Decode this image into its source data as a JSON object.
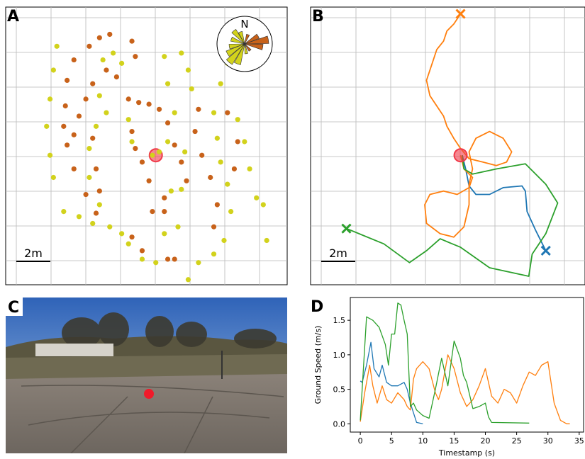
{
  "chart_data": [
    {
      "type": "scatter",
      "panel_label": "A",
      "compass_label": "N",
      "scale_label": "2m",
      "xlim": [
        0,
        16.5
      ],
      "ylim": [
        0,
        16.3
      ],
      "origin": {
        "x": 8.8,
        "y": 7.6
      },
      "series": [
        {
          "color": "#c8621a",
          "x": [
            4.9,
            5.5,
            6.1,
            4.0,
            3.6,
            3.5,
            3.4,
            3.6,
            4.0,
            4.7,
            5.3,
            5.9,
            5.1,
            4.7,
            4.3,
            4.0,
            5.1,
            5.3,
            5.5,
            7.2,
            7.8,
            8.4,
            7.4,
            7.6,
            8.0,
            9.0,
            9.5,
            9.9,
            10.3,
            10.6,
            9.3,
            9.3,
            11.1,
            11.5,
            12.0,
            12.4,
            12.2,
            9.9,
            9.5,
            7.4,
            8.0,
            13.4,
            13.6,
            13.0,
            11.3,
            7.6,
            7.4,
            6.5,
            8.4,
            8.6
          ],
          "values": [
            14.0,
            14.5,
            14.7,
            13.2,
            12.0,
            10.5,
            9.3,
            8.2,
            6.8,
            5.3,
            4.2,
            12.6,
            11.8,
            10.9,
            9.9,
            8.8,
            8.6,
            6.8,
            5.5,
            10.9,
            10.7,
            10.6,
            9.0,
            8.0,
            7.2,
            10.3,
            9.5,
            8.2,
            7.2,
            6.1,
            5.1,
            4.3,
            9.0,
            7.6,
            6.3,
            4.7,
            3.4,
            1.5,
            1.5,
            2.8,
            2.0,
            6.8,
            8.4,
            10.1,
            10.3,
            13.4,
            14.3,
            12.2,
            6.1,
            4.3
          ]
        },
        {
          "color": "#d2d21c",
          "x": [
            3.0,
            2.8,
            2.6,
            2.4,
            2.6,
            2.8,
            3.4,
            4.3,
            5.1,
            6.1,
            6.8,
            7.2,
            8.0,
            8.8,
            9.3,
            10.1,
            10.7,
            11.3,
            12.2,
            12.8,
            13.2,
            13.0,
            12.6,
            12.4,
            12.2,
            13.6,
            14.0,
            14.3,
            15.1,
            15.3,
            14.7,
            9.7,
            10.3,
            9.5,
            8.6,
            7.4,
            7.2,
            5.7,
            6.3,
            6.8,
            9.3,
            10.3,
            10.7,
            10.9,
            9.9,
            9.5,
            12.6,
            13.0,
            5.5,
            5.9,
            5.3,
            4.9,
            4.9,
            5.5,
            9.0,
            10.5
          ],
          "values": [
            14.0,
            12.6,
            10.9,
            9.3,
            7.6,
            6.3,
            4.3,
            4.0,
            3.6,
            3.4,
            3.0,
            2.4,
            1.5,
            1.3,
            3.0,
            3.4,
            0.3,
            1.3,
            1.8,
            2.6,
            4.3,
            5.9,
            7.2,
            8.6,
            10.1,
            9.7,
            8.4,
            6.8,
            4.7,
            2.6,
            5.1,
            5.5,
            5.6,
            8.4,
            7.6,
            8.4,
            9.7,
            13.2,
            13.6,
            13.0,
            13.4,
            13.6,
            12.6,
            11.5,
            10.1,
            11.8,
            11.8,
            13.0,
            11.1,
            10.1,
            9.3,
            8.0,
            6.3,
            4.7,
            7.8,
            7.8
          ]
        }
      ]
    },
    {
      "type": "trajectory",
      "panel_label": "B",
      "scale_label": "2m",
      "xlim": [
        0,
        16.1
      ],
      "ylim": [
        0,
        16.3
      ],
      "origin": {
        "x": 8.8,
        "y": 7.6
      },
      "series": [
        {
          "color": "#1f77b4",
          "x": [
            13.8,
            13.2,
            12.7,
            12.6,
            12.4,
            11.3,
            10.5,
            9.7,
            9.3,
            9.1,
            8.9
          ],
          "values": [
            2.0,
            3.2,
            4.3,
            5.5,
            5.8,
            5.7,
            5.3,
            5.3,
            5.8,
            6.8,
            7.6
          ]
        },
        {
          "color": "#ff7f0e",
          "x": [
            8.8,
            8.4,
            8.0,
            7.8,
            7.4,
            7.2,
            7.0,
            6.8,
            7.0,
            7.4,
            7.8,
            8.0,
            8.4,
            8.8,
            9.3,
            10.1,
            10.9,
            11.5,
            11.8,
            11.3,
            10.5,
            9.7,
            9.3,
            9.5,
            9.3,
            9.3,
            9.0,
            8.4,
            7.6,
            6.8,
            6.7,
            7.0,
            7.8,
            8.6,
            9.3,
            9.5,
            9.0,
            8.8
          ],
          "values": [
            15.9,
            15.3,
            14.9,
            14.3,
            13.8,
            13.2,
            12.6,
            12.0,
            11.1,
            10.5,
            9.9,
            9.3,
            8.6,
            8.0,
            7.4,
            7.2,
            7.0,
            7.2,
            7.8,
            8.6,
            9.0,
            8.6,
            7.8,
            6.8,
            5.9,
            4.7,
            3.4,
            2.8,
            3.0,
            3.6,
            4.7,
            5.3,
            5.5,
            5.3,
            5.7,
            6.3,
            6.8,
            7.6
          ]
        },
        {
          "color": "#2ca02c",
          "x": [
            2.1,
            4.3,
            5.8,
            6.8,
            7.6,
            8.8,
            10.5,
            12.8,
            13.0,
            13.8,
            14.5,
            13.8,
            12.6,
            10.9,
            9.5,
            9.0,
            8.9
          ],
          "values": [
            3.3,
            2.4,
            1.3,
            2.0,
            2.7,
            2.2,
            1.0,
            0.5,
            1.8,
            3.0,
            4.8,
            5.9,
            7.1,
            6.8,
            6.5,
            6.8,
            7.6
          ]
        }
      ]
    },
    {
      "type": "line",
      "panel_label": "D",
      "x_label": "Timestamp (s)",
      "y_label": "Ground Speed (m/s)",
      "xlim": [
        -1.6,
        35.7
      ],
      "ylim": [
        -0.12,
        1.83
      ],
      "xticks": [
        0,
        5,
        10,
        15,
        20,
        25,
        30,
        35
      ],
      "yticks": [
        {
          "value": 0,
          "label": "0.0"
        },
        {
          "value": 0.5,
          "label": "0.5"
        },
        {
          "value": 1,
          "label": "1.0"
        },
        {
          "value": 1.5,
          "label": "1.5"
        }
      ],
      "series": [
        {
          "color": "#1f77b4",
          "x": [
            0,
            0.3,
            1,
            1.7,
            2.2,
            3,
            3.5,
            4.2,
            5,
            6,
            7,
            7.5,
            8,
            9,
            10
          ],
          "values": [
            0.62,
            0.6,
            0.85,
            1.18,
            0.8,
            0.68,
            0.85,
            0.6,
            0.55,
            0.55,
            0.6,
            0.5,
            0.3,
            0.02,
            0
          ]
        },
        {
          "color": "#ff7f0e",
          "x": [
            0,
            0.7,
            1.5,
            2,
            2.7,
            3.5,
            4.2,
            5,
            6,
            7,
            7.5,
            8,
            8.5,
            9,
            10,
            11,
            12,
            12.5,
            13,
            14,
            15,
            16,
            17,
            18,
            19,
            20,
            21,
            22,
            23,
            24,
            25,
            26,
            27,
            28,
            29,
            30,
            31,
            32,
            33,
            33.5
          ],
          "values": [
            0.03,
            0.45,
            0.85,
            0.55,
            0.3,
            0.55,
            0.35,
            0.3,
            0.45,
            0.35,
            0.25,
            0.2,
            0.65,
            0.8,
            0.9,
            0.8,
            0.45,
            0.35,
            0.5,
            1.0,
            0.8,
            0.45,
            0.25,
            0.35,
            0.55,
            0.8,
            0.4,
            0.3,
            0.5,
            0.45,
            0.3,
            0.55,
            0.75,
            0.7,
            0.85,
            0.9,
            0.3,
            0.05,
            0,
            0
          ]
        },
        {
          "color": "#2ca02c",
          "x": [
            0,
            1,
            2,
            3,
            4,
            4.5,
            5,
            5.5,
            6,
            6.5,
            7,
            7.5,
            8,
            8.5,
            9,
            10,
            11,
            12,
            13,
            14,
            15,
            16,
            16.5,
            17,
            18,
            19,
            20,
            20.5,
            21,
            27
          ],
          "values": [
            0.05,
            1.55,
            1.5,
            1.4,
            1.15,
            0.85,
            1.3,
            1.3,
            1.75,
            1.72,
            1.5,
            1.3,
            0.25,
            0.3,
            0.2,
            0.12,
            0.08,
            0.5,
            0.95,
            0.55,
            1.2,
            0.95,
            0.7,
            0.6,
            0.22,
            0.25,
            0.3,
            0.1,
            0.02,
            0.01
          ]
        }
      ]
    }
  ],
  "photo": {
    "panel_label": "C"
  }
}
